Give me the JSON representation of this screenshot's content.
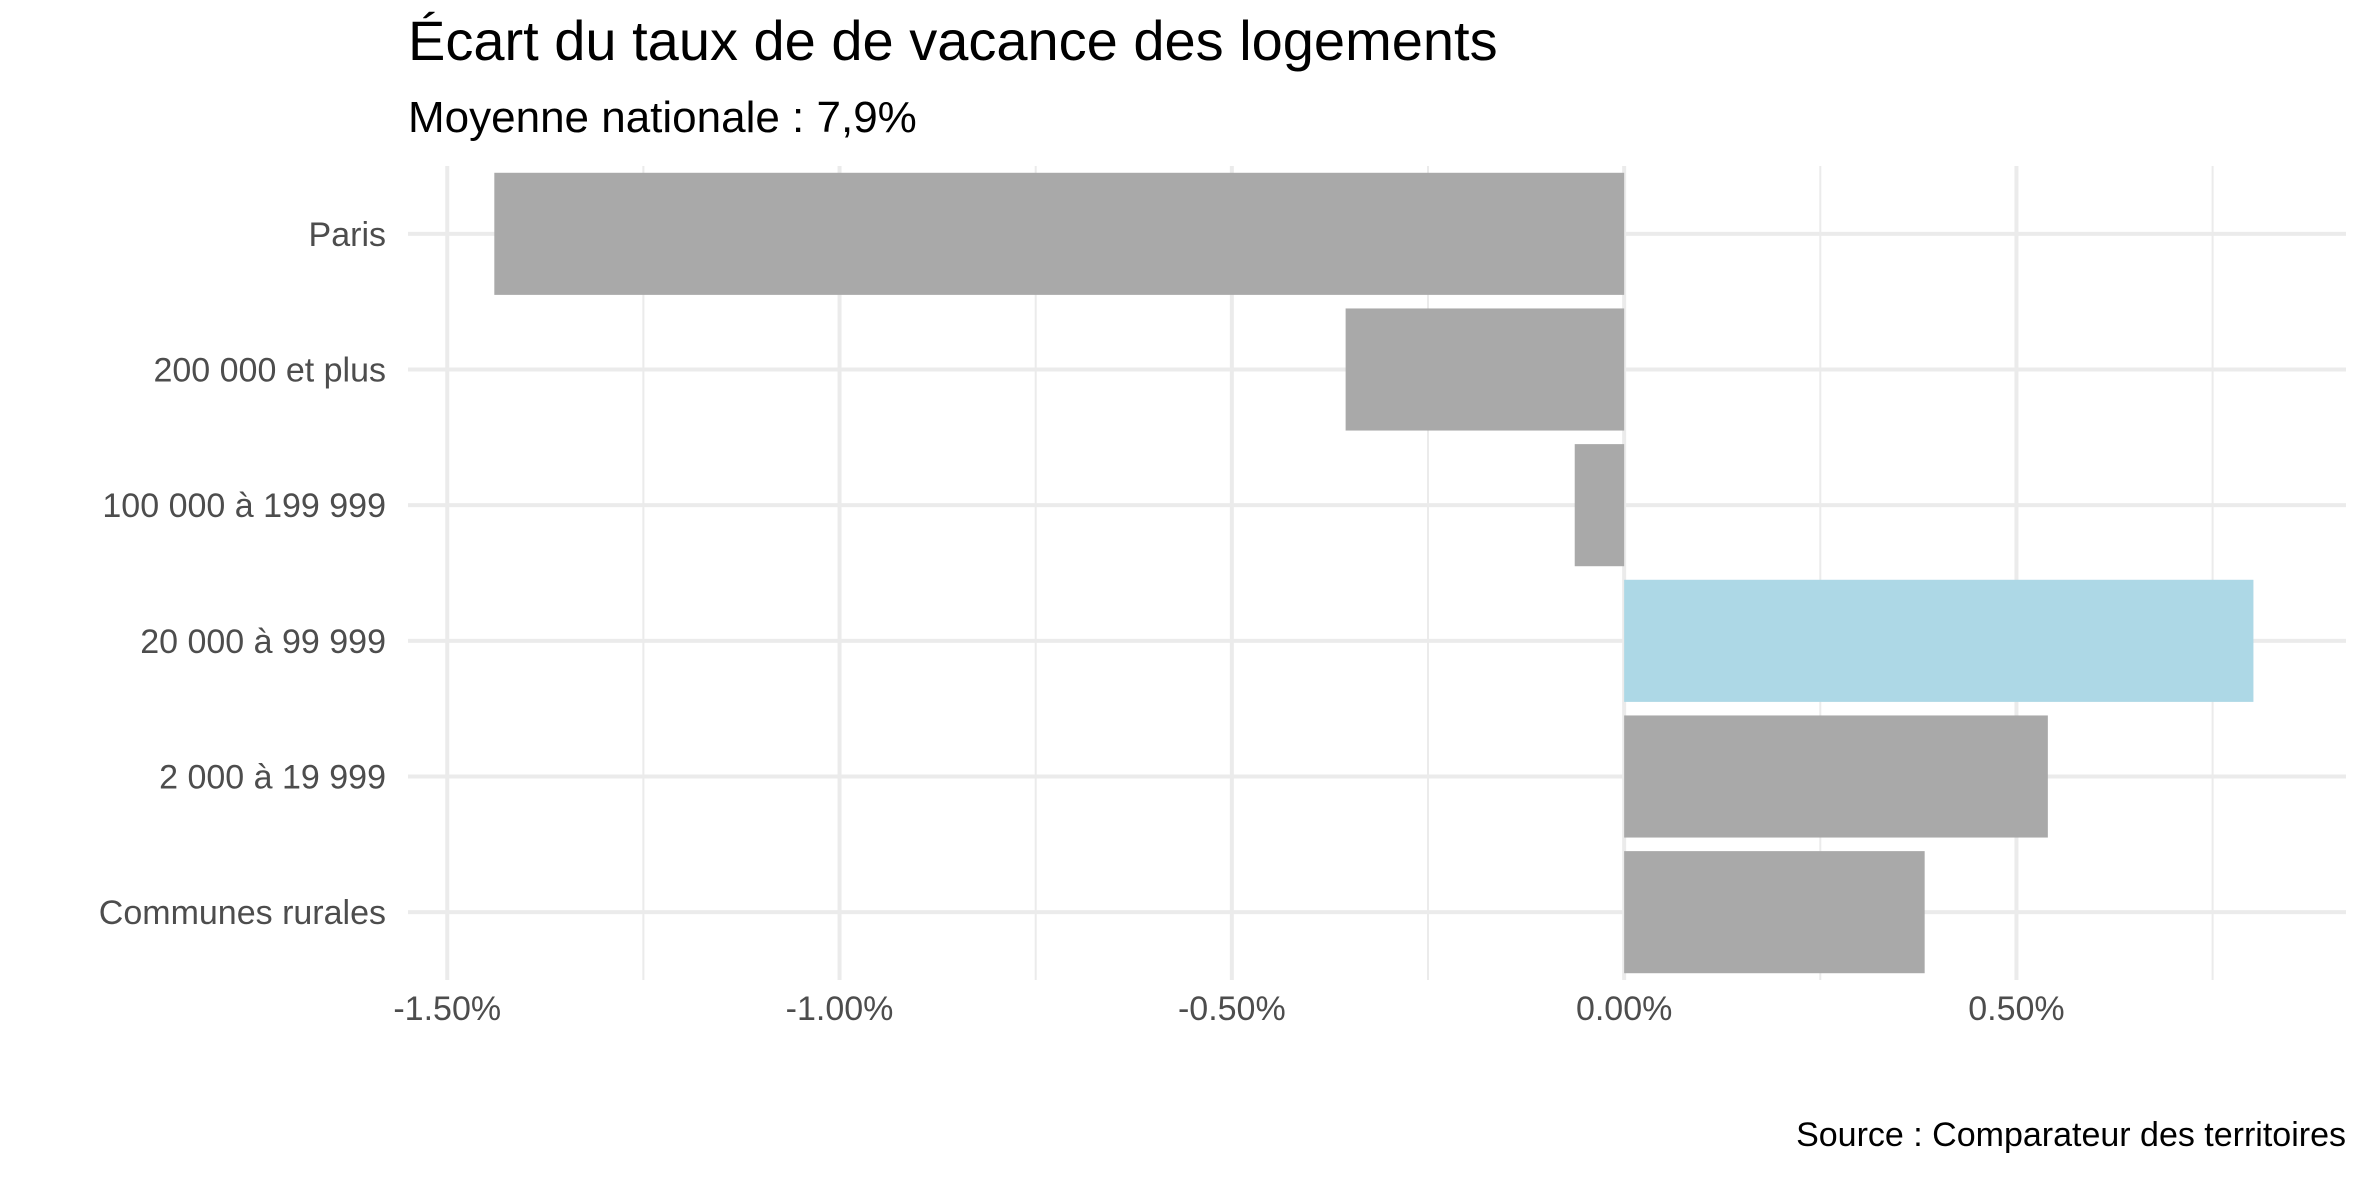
{
  "chart_data": {
    "type": "bar",
    "orientation": "horizontal",
    "title": "Écart du taux de de vacance des logements",
    "subtitle": "Moyenne nationale : 7,9%",
    "caption": "Source : Comparateur des territoires",
    "categories": [
      "Paris",
      "200 000 et plus",
      "100 000 à 199 999",
      "20 000 à 99 999",
      "2 000 à 19 999",
      "Communes rurales"
    ],
    "values": [
      -1.44,
      -0.355,
      -0.063,
      0.802,
      0.54,
      0.383
    ],
    "highlight_category": "20 000 à 99 999",
    "xlabel": "",
    "ylabel": "",
    "xlim": [
      -1.55,
      0.92
    ],
    "xticks": [
      -1.5,
      -1.0,
      -0.5,
      0.0,
      0.5
    ],
    "xtick_labels": [
      "-1.50%",
      "-1.00%",
      "-0.50%",
      "0.00%",
      "0.50%"
    ],
    "grid": true,
    "legend": "none",
    "colors": {
      "bar": "#a9a9a9",
      "highlight": "#add8e6",
      "grid": "#ebebeb"
    }
  }
}
